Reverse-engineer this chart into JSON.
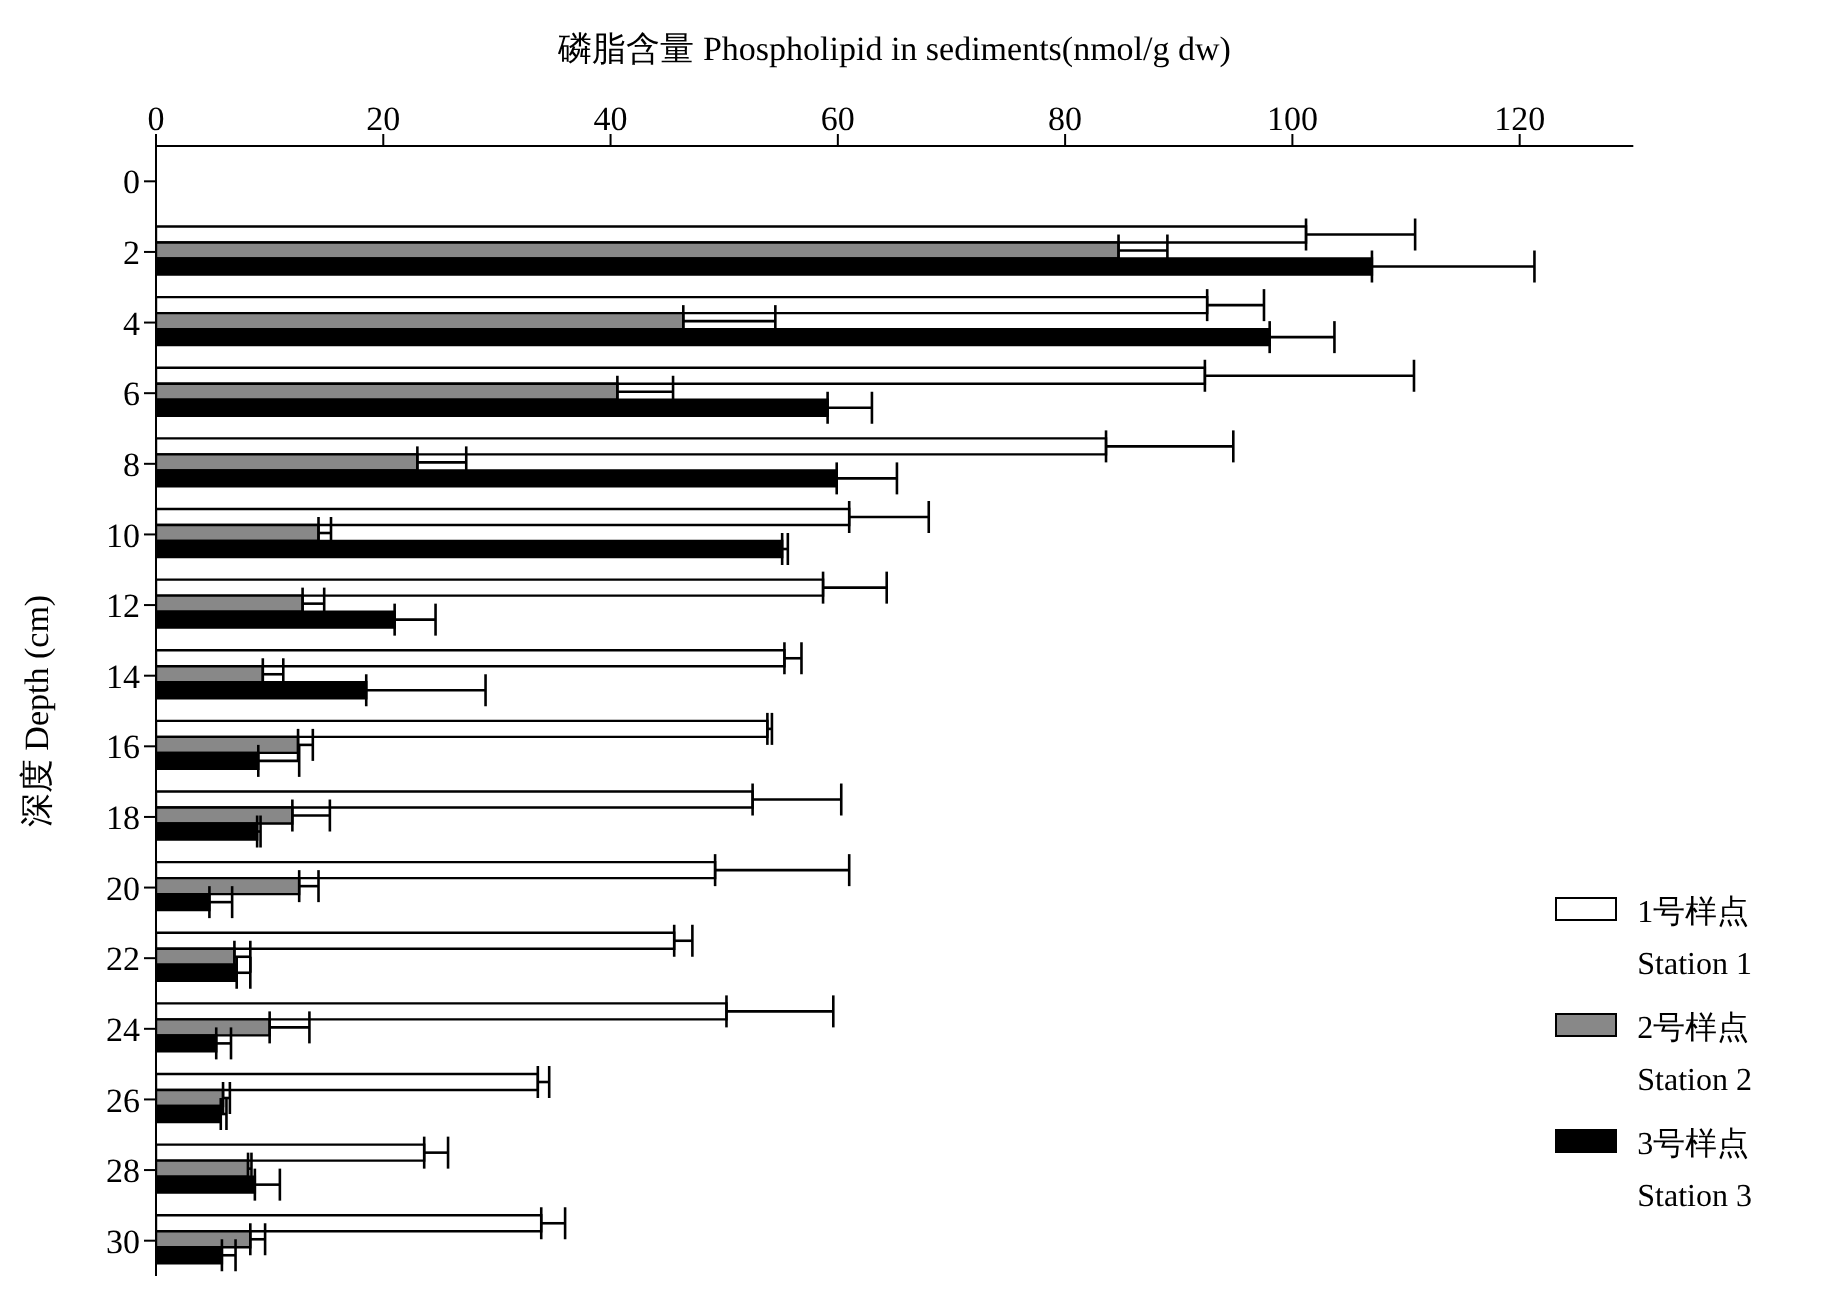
{
  "chart_data": {
    "type": "bar",
    "orientation": "horizontal",
    "xlabel": "磷脂含量 Phospholipid in sediments(nmol/g dw)",
    "ylabel": "深度 Depth (cm)",
    "categories": [
      "0",
      "2",
      "4",
      "6",
      "8",
      "10",
      "12",
      "14",
      "16",
      "18",
      "20",
      "22",
      "24",
      "26",
      "28",
      "30"
    ],
    "xlim": [
      0,
      130
    ],
    "xticks": [
      0,
      20,
      40,
      60,
      80,
      100,
      120
    ],
    "legend": "bottom right",
    "grid": false,
    "series": [
      {
        "name": "1号样点\nStation 1",
        "color": "#ffffff",
        "values": [
          null,
          101.2,
          92.5,
          92.3,
          83.6,
          61,
          58.7,
          55.3,
          53.8,
          52.5,
          49.2,
          45.6,
          50.2,
          33.6,
          23.6,
          33.9
        ],
        "errors": [
          null,
          [
            101.2,
            110.8
          ],
          [
            92.5,
            97.5
          ],
          [
            92.3,
            110.7
          ],
          [
            83.6,
            94.8
          ],
          [
            61,
            68
          ],
          [
            58.7,
            64.3
          ],
          [
            55.3,
            56.8
          ],
          [
            53.8,
            54.2
          ],
          [
            52.5,
            60.3
          ],
          [
            49.2,
            61
          ],
          [
            45.6,
            47.2
          ],
          [
            50.2,
            59.6
          ],
          [
            33.6,
            34.6
          ],
          [
            23.6,
            25.7
          ],
          [
            33.9,
            36
          ]
        ]
      },
      {
        "name": "2号样点\nStation 2",
        "color": "#888888",
        "values": [
          null,
          84.7,
          46.4,
          40.6,
          23,
          14.3,
          12.9,
          9.4,
          12.5,
          12,
          12.6,
          6.9,
          10,
          5.9,
          8.1,
          8.3
        ],
        "errors": [
          null,
          [
            84.7,
            89
          ],
          [
            46.4,
            54.5
          ],
          [
            40.6,
            45.5
          ],
          [
            23,
            27.3
          ],
          [
            14.3,
            15.4
          ],
          [
            12.9,
            14.8
          ],
          [
            9.4,
            11.2
          ],
          [
            12.5,
            13.8
          ],
          [
            12,
            15.3
          ],
          [
            12.6,
            14.3
          ],
          [
            6.9,
            8.3
          ],
          [
            10,
            13.5
          ],
          [
            5.9,
            6.5
          ],
          [
            8.1,
            8.4
          ],
          [
            8.3,
            9.6
          ]
        ]
      },
      {
        "name": "3号样点\nStation 3",
        "color": "#000000",
        "values": [
          null,
          107,
          98,
          59.1,
          59.9,
          55.1,
          21,
          18.5,
          9,
          8.9,
          4.7,
          7.1,
          5.3,
          5.7,
          8.7,
          5.8
        ],
        "errors": [
          null,
          [
            107,
            121.3
          ],
          [
            98,
            103.7
          ],
          [
            59.1,
            63
          ],
          [
            59.9,
            65.2
          ],
          [
            55.1,
            55.6
          ],
          [
            21,
            24.6
          ],
          [
            18.5,
            29
          ],
          [
            9,
            12.6
          ],
          [
            8.9,
            9.2
          ],
          [
            4.7,
            6.7
          ],
          [
            7.1,
            8.3
          ],
          [
            5.3,
            6.6
          ],
          [
            5.7,
            6.2
          ],
          [
            8.7,
            10.9
          ],
          [
            5.8,
            7
          ]
        ]
      }
    ]
  }
}
